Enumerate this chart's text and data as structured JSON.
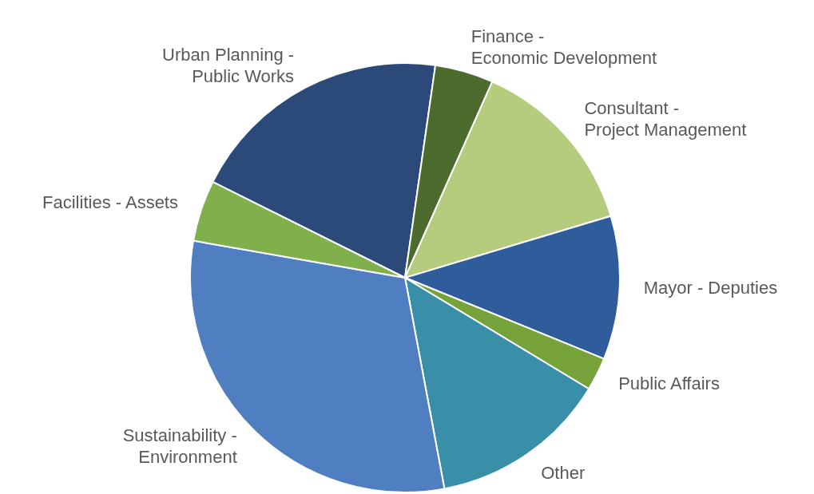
{
  "chart_data": {
    "type": "pie",
    "categories": [
      "Urban Planning - Public Works",
      "Finance - Economic Development",
      "Consultant - Project Management",
      "Mayor - Deputies",
      "Public Affairs",
      "Other",
      "Sustainability - Environment",
      "Facilities - Assets"
    ],
    "values": [
      19.9,
      4.4,
      13.7,
      10.8,
      2.5,
      13.4,
      30.7,
      4.6
    ],
    "colors": [
      "#2b4a7a",
      "#4e6b2e",
      "#b5cc7f",
      "#2f5d9b",
      "#76a23a",
      "#3a8fa8",
      "#4f7fc0",
      "#7fb04c"
    ],
    "legend": false
  }
}
